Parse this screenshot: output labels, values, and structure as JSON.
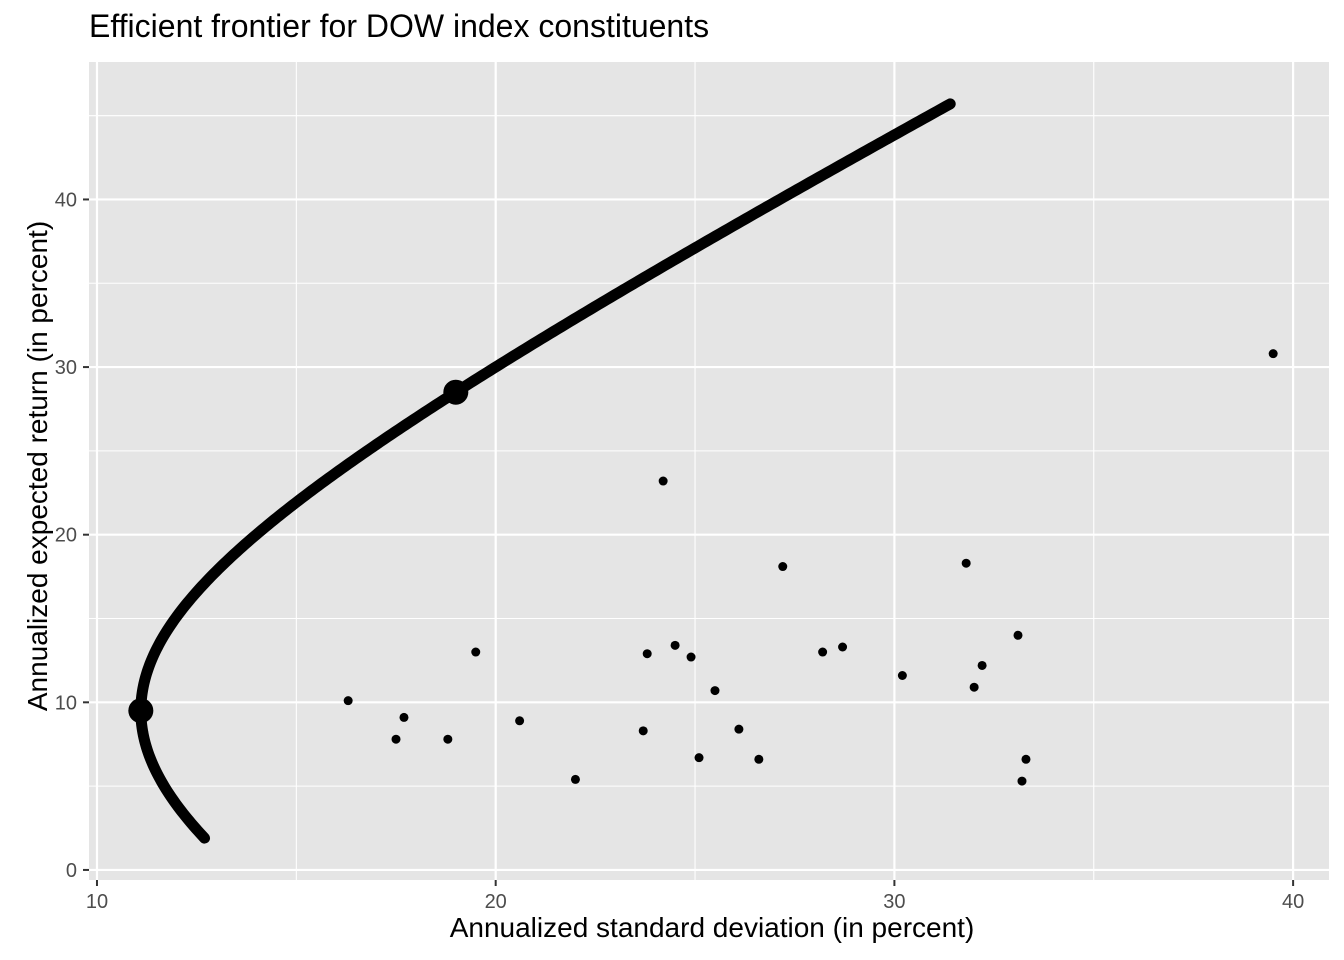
{
  "chart_data": {
    "type": "scatter",
    "title": "Efficient frontier for DOW index constituents",
    "xlabel": "Annualized standard deviation (in percent)",
    "ylabel": "Annualized expected return (in percent)",
    "xlim": [
      9.8,
      40.9
    ],
    "ylim": [
      -0.6,
      48.2
    ],
    "x_ticks": [
      10,
      20,
      30,
      40
    ],
    "y_ticks": [
      0,
      10,
      20,
      30,
      40
    ],
    "grid": true,
    "background": "#E5E5E5",
    "grid_color": "#FFFFFF",
    "mark_color": "#000000",
    "frontier": {
      "min_variance_sd": 11.1,
      "min_variance_return": 9.5,
      "return_start": 1.9,
      "return_end": 45.7,
      "sd_end": 31.4,
      "highlighted_points": [
        {
          "x": 11.1,
          "y": 9.5
        },
        {
          "x": 19.0,
          "y": 28.5
        }
      ]
    },
    "stocks": [
      {
        "x": 39.5,
        "y": 30.8
      },
      {
        "x": 24.2,
        "y": 23.2
      },
      {
        "x": 31.8,
        "y": 18.3
      },
      {
        "x": 27.2,
        "y": 18.1
      },
      {
        "x": 33.1,
        "y": 14.0
      },
      {
        "x": 24.5,
        "y": 13.4
      },
      {
        "x": 28.7,
        "y": 13.3
      },
      {
        "x": 19.5,
        "y": 13.0
      },
      {
        "x": 28.2,
        "y": 13.0
      },
      {
        "x": 23.8,
        "y": 12.9
      },
      {
        "x": 24.9,
        "y": 12.7
      },
      {
        "x": 32.2,
        "y": 12.2
      },
      {
        "x": 30.2,
        "y": 11.6
      },
      {
        "x": 32.0,
        "y": 10.9
      },
      {
        "x": 25.5,
        "y": 10.7
      },
      {
        "x": 16.3,
        "y": 10.1
      },
      {
        "x": 17.7,
        "y": 9.1
      },
      {
        "x": 20.6,
        "y": 8.9
      },
      {
        "x": 26.1,
        "y": 8.4
      },
      {
        "x": 23.7,
        "y": 8.3
      },
      {
        "x": 17.5,
        "y": 7.8
      },
      {
        "x": 18.8,
        "y": 7.8
      },
      {
        "x": 25.1,
        "y": 6.7
      },
      {
        "x": 26.6,
        "y": 6.6
      },
      {
        "x": 33.3,
        "y": 6.6
      },
      {
        "x": 22.0,
        "y": 5.4
      },
      {
        "x": 33.2,
        "y": 5.3
      }
    ]
  }
}
